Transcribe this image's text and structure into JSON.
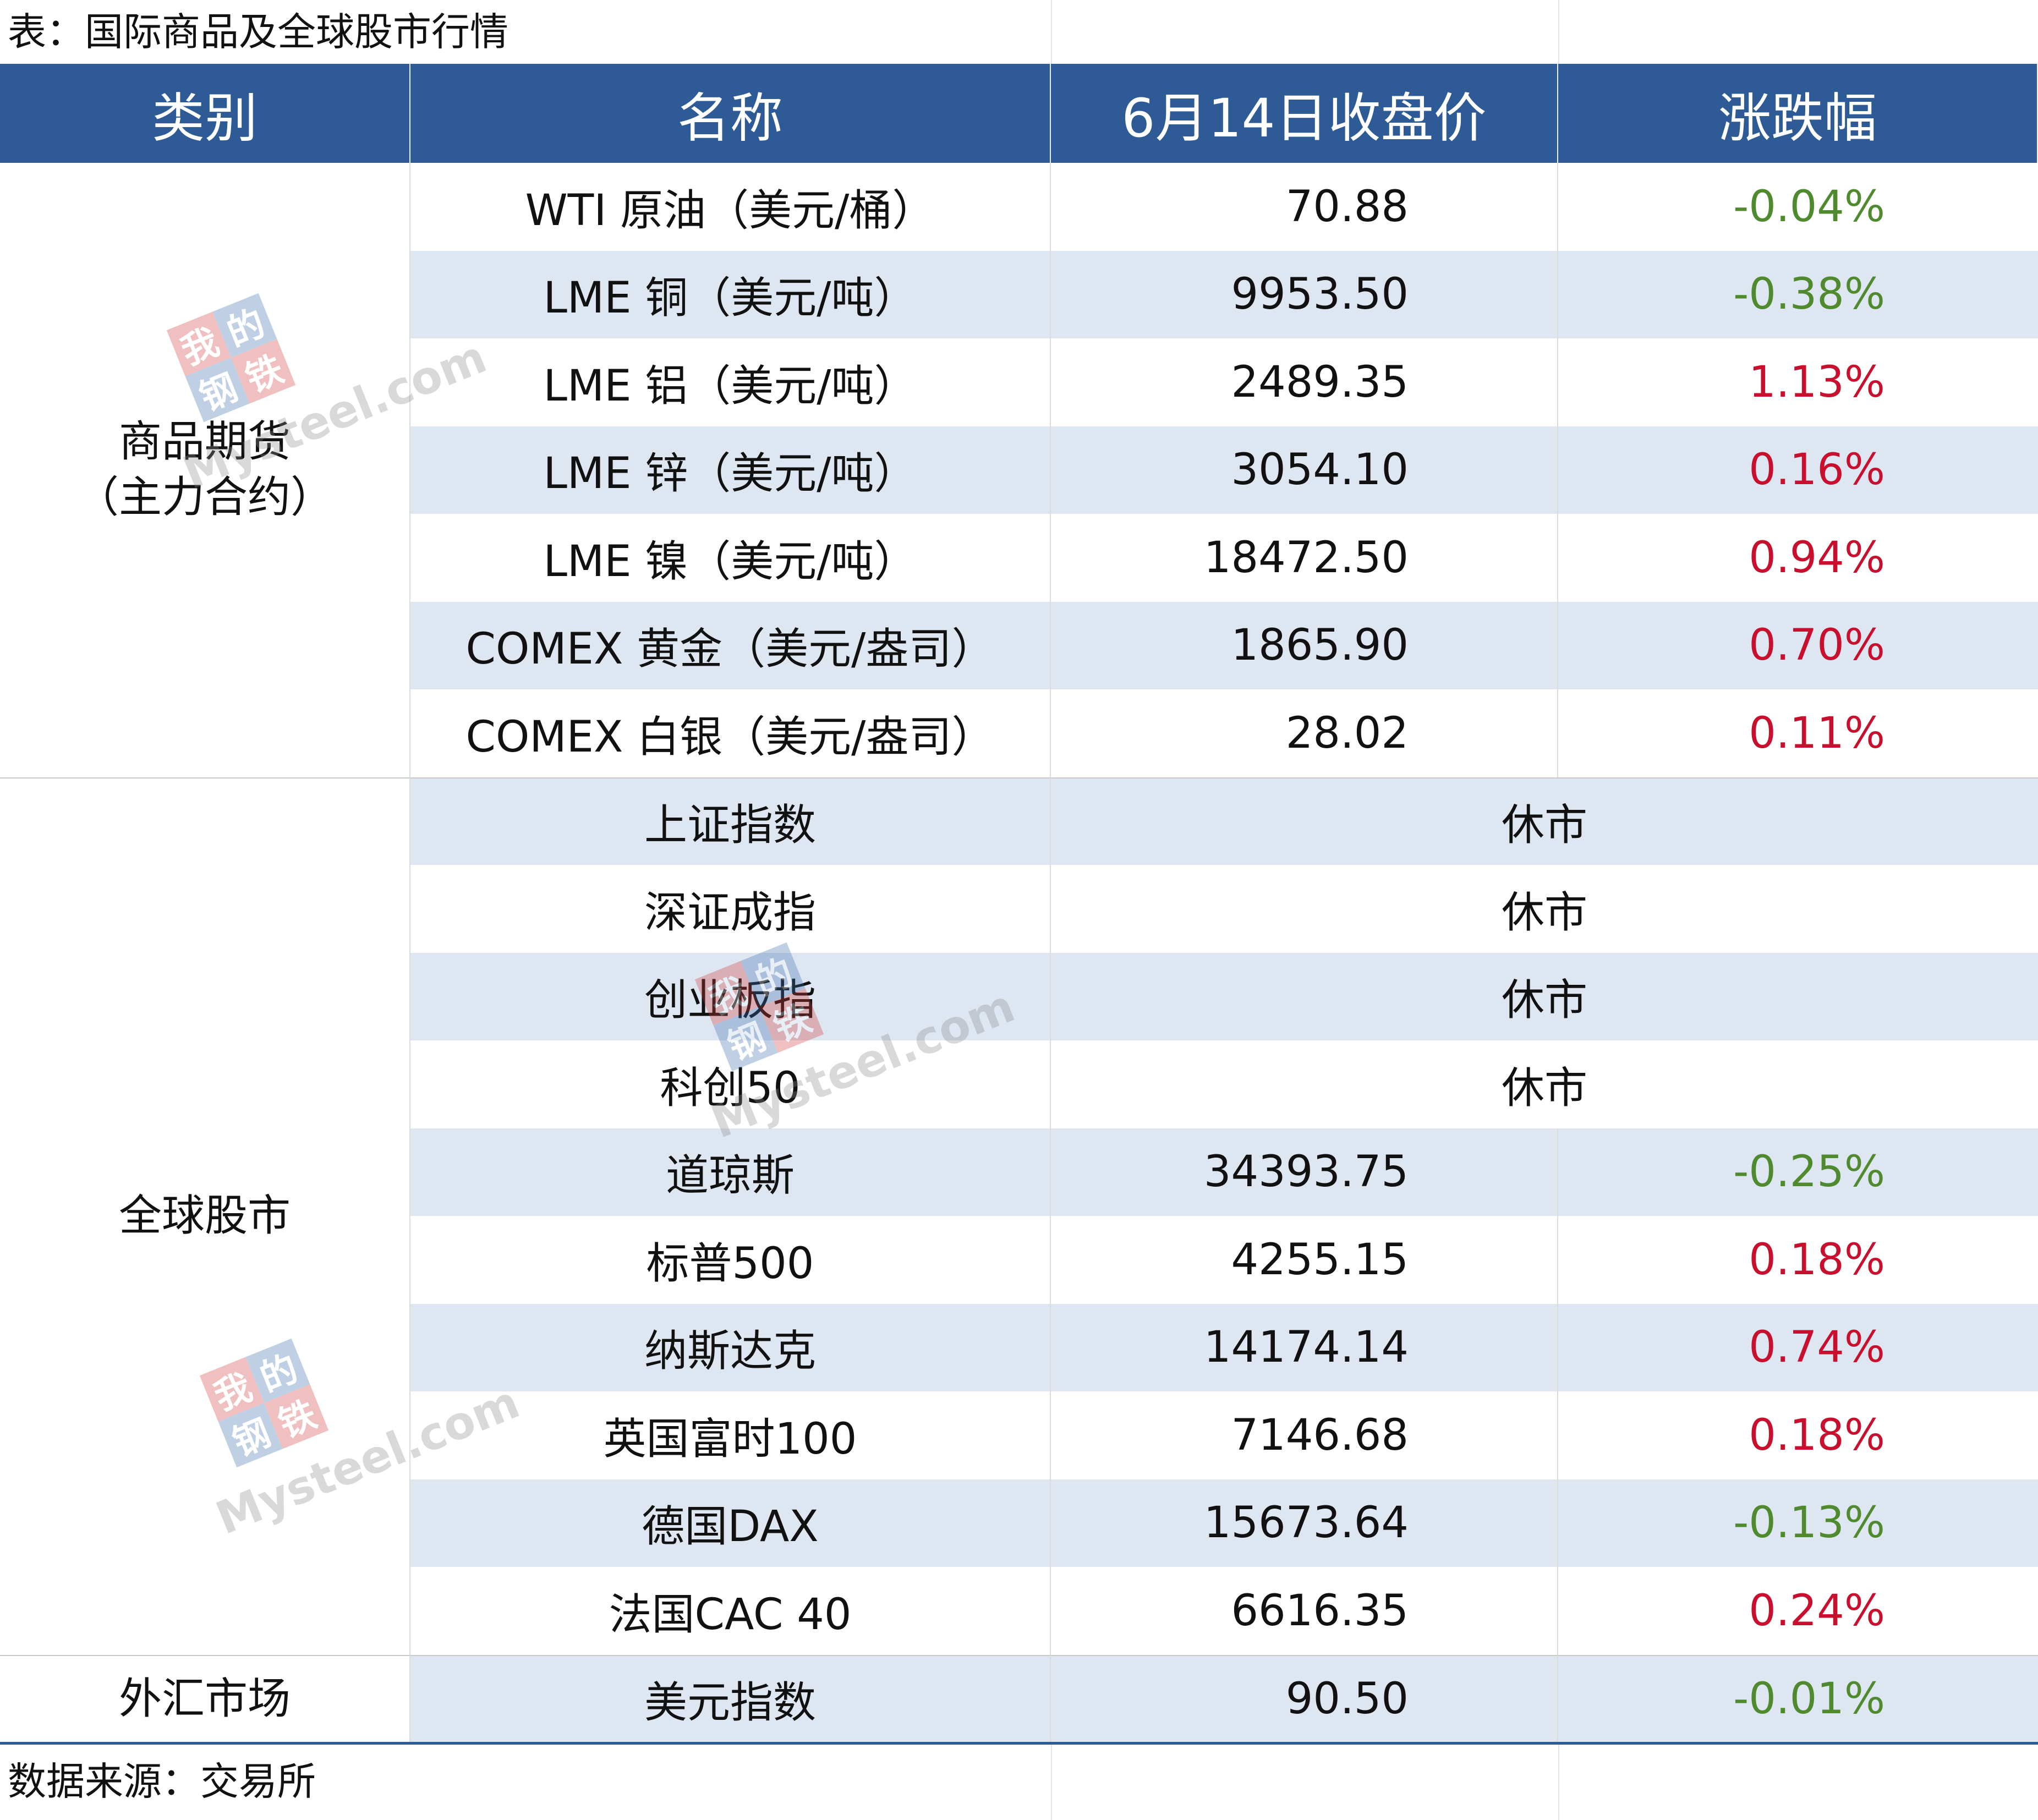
{
  "caption": "表：国际商品及全球股市行情",
  "source": "数据来源：交易所",
  "headers": {
    "category": "类别",
    "name": "名称",
    "close": "6月14日收盘价",
    "change": "涨跌幅"
  },
  "categories": {
    "commodities_line1": "商品期货",
    "commodities_line2": "（主力合约）",
    "stocks": "全球股市",
    "forex": "外汇市场"
  },
  "rows": [
    {
      "name": "WTI 原油（美元/桶）",
      "close": "70.88",
      "change": "-0.04%"
    },
    {
      "name": "LME 铜（美元/吨）",
      "close": "9953.50",
      "change": "-0.38%"
    },
    {
      "name": "LME 铝（美元/吨）",
      "close": "2489.35",
      "change": "1.13%"
    },
    {
      "name": "LME 锌（美元/吨）",
      "close": "3054.10",
      "change": "0.16%"
    },
    {
      "name": "LME 镍（美元/吨）",
      "close": "18472.50",
      "change": "0.94%"
    },
    {
      "name": "COMEX 黄金（美元/盎司）",
      "close": "1865.90",
      "change": "0.70%"
    },
    {
      "name": "COMEX 白银（美元/盎司）",
      "close": "28.02",
      "change": "0.11%"
    },
    {
      "name": "上证指数",
      "close": "休市",
      "change": ""
    },
    {
      "name": "深证成指",
      "close": "休市",
      "change": ""
    },
    {
      "name": "创业板指",
      "close": "休市",
      "change": ""
    },
    {
      "name": "科创50",
      "close": "休市",
      "change": ""
    },
    {
      "name": "道琼斯",
      "close": "34393.75",
      "change": "-0.25%"
    },
    {
      "name": "标普500",
      "close": "4255.15",
      "change": "0.18%"
    },
    {
      "name": "纳斯达克",
      "close": "14174.14",
      "change": "0.74%"
    },
    {
      "name": "英国富时100",
      "close": "7146.68",
      "change": "0.18%"
    },
    {
      "name": "德国DAX",
      "close": "15673.64",
      "change": "-0.13%"
    },
    {
      "name": "法国CAC 40",
      "close": "6616.35",
      "change": "0.24%"
    },
    {
      "name": "美元指数",
      "close": "90.50",
      "change": "-0.01%"
    }
  ],
  "watermark": {
    "chars": [
      "我",
      "的",
      "钢",
      "铁"
    ],
    "site": "Mysteel.com"
  },
  "colors": {
    "header_bg": "#2e5b95",
    "row_shade": "#dde6f1",
    "up": "#c8102e",
    "down": "#4f8a2e"
  }
}
